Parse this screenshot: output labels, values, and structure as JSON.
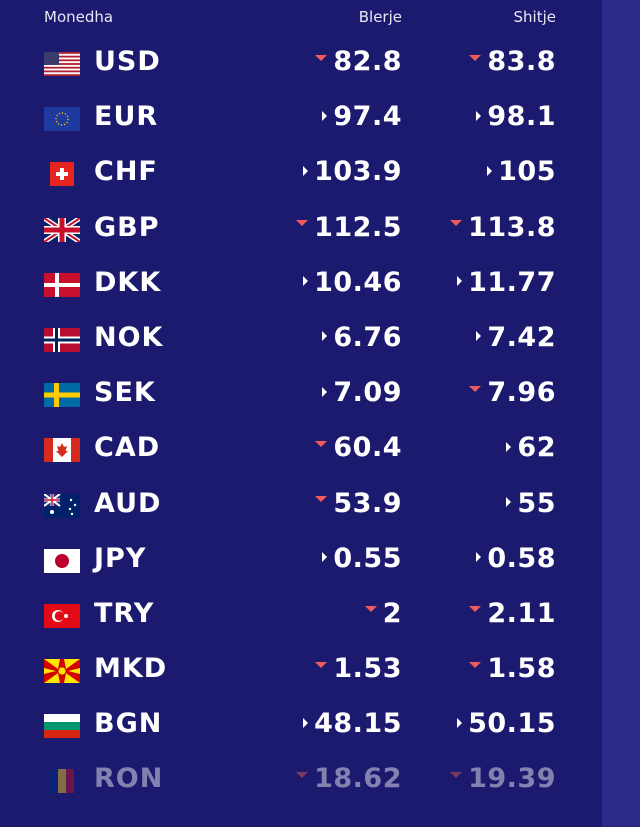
{
  "header": {
    "currency_label": "Monedha",
    "buy_label": "Blerje",
    "sell_label": "Shitje"
  },
  "colors": {
    "background": "#1c1a6e",
    "side_panel": "#2c2a88",
    "arrow_down": "#f05a5a",
    "arrow_neutral": "#ffffff"
  },
  "rates": [
    {
      "code": "USD",
      "flag": "us-flag-icon",
      "buy": "82.8",
      "buy_trend": "down",
      "sell": "83.8",
      "sell_trend": "down"
    },
    {
      "code": "EUR",
      "flag": "eu-flag-icon",
      "buy": "97.4",
      "buy_trend": "neutral",
      "sell": "98.1",
      "sell_trend": "neutral"
    },
    {
      "code": "CHF",
      "flag": "ch-flag-icon",
      "buy": "103.9",
      "buy_trend": "neutral",
      "sell": "105",
      "sell_trend": "neutral"
    },
    {
      "code": "GBP",
      "flag": "gb-flag-icon",
      "buy": "112.5",
      "buy_trend": "down",
      "sell": "113.8",
      "sell_trend": "down"
    },
    {
      "code": "DKK",
      "flag": "dk-flag-icon",
      "buy": "10.46",
      "buy_trend": "neutral",
      "sell": "11.77",
      "sell_trend": "neutral"
    },
    {
      "code": "NOK",
      "flag": "no-flag-icon",
      "buy": "6.76",
      "buy_trend": "neutral",
      "sell": "7.42",
      "sell_trend": "neutral"
    },
    {
      "code": "SEK",
      "flag": "se-flag-icon",
      "buy": "7.09",
      "buy_trend": "neutral",
      "sell": "7.96",
      "sell_trend": "down"
    },
    {
      "code": "CAD",
      "flag": "ca-flag-icon",
      "buy": "60.4",
      "buy_trend": "down",
      "sell": "62",
      "sell_trend": "neutral"
    },
    {
      "code": "AUD",
      "flag": "au-flag-icon",
      "buy": "53.9",
      "buy_trend": "down",
      "sell": "55",
      "sell_trend": "neutral"
    },
    {
      "code": "JPY",
      "flag": "jp-flag-icon",
      "buy": "0.55",
      "buy_trend": "neutral",
      "sell": "0.58",
      "sell_trend": "neutral"
    },
    {
      "code": "TRY",
      "flag": "tr-flag-icon",
      "buy": "2",
      "buy_trend": "down",
      "sell": "2.11",
      "sell_trend": "down"
    },
    {
      "code": "MKD",
      "flag": "mk-flag-icon",
      "buy": "1.53",
      "buy_trend": "down",
      "sell": "1.58",
      "sell_trend": "down"
    },
    {
      "code": "BGN",
      "flag": "bg-flag-icon",
      "buy": "48.15",
      "buy_trend": "neutral",
      "sell": "50.15",
      "sell_trend": "neutral"
    },
    {
      "code": "RON",
      "flag": "ro-flag-icon",
      "buy": "18.62",
      "buy_trend": "down",
      "sell": "19.39",
      "sell_trend": "down"
    }
  ]
}
